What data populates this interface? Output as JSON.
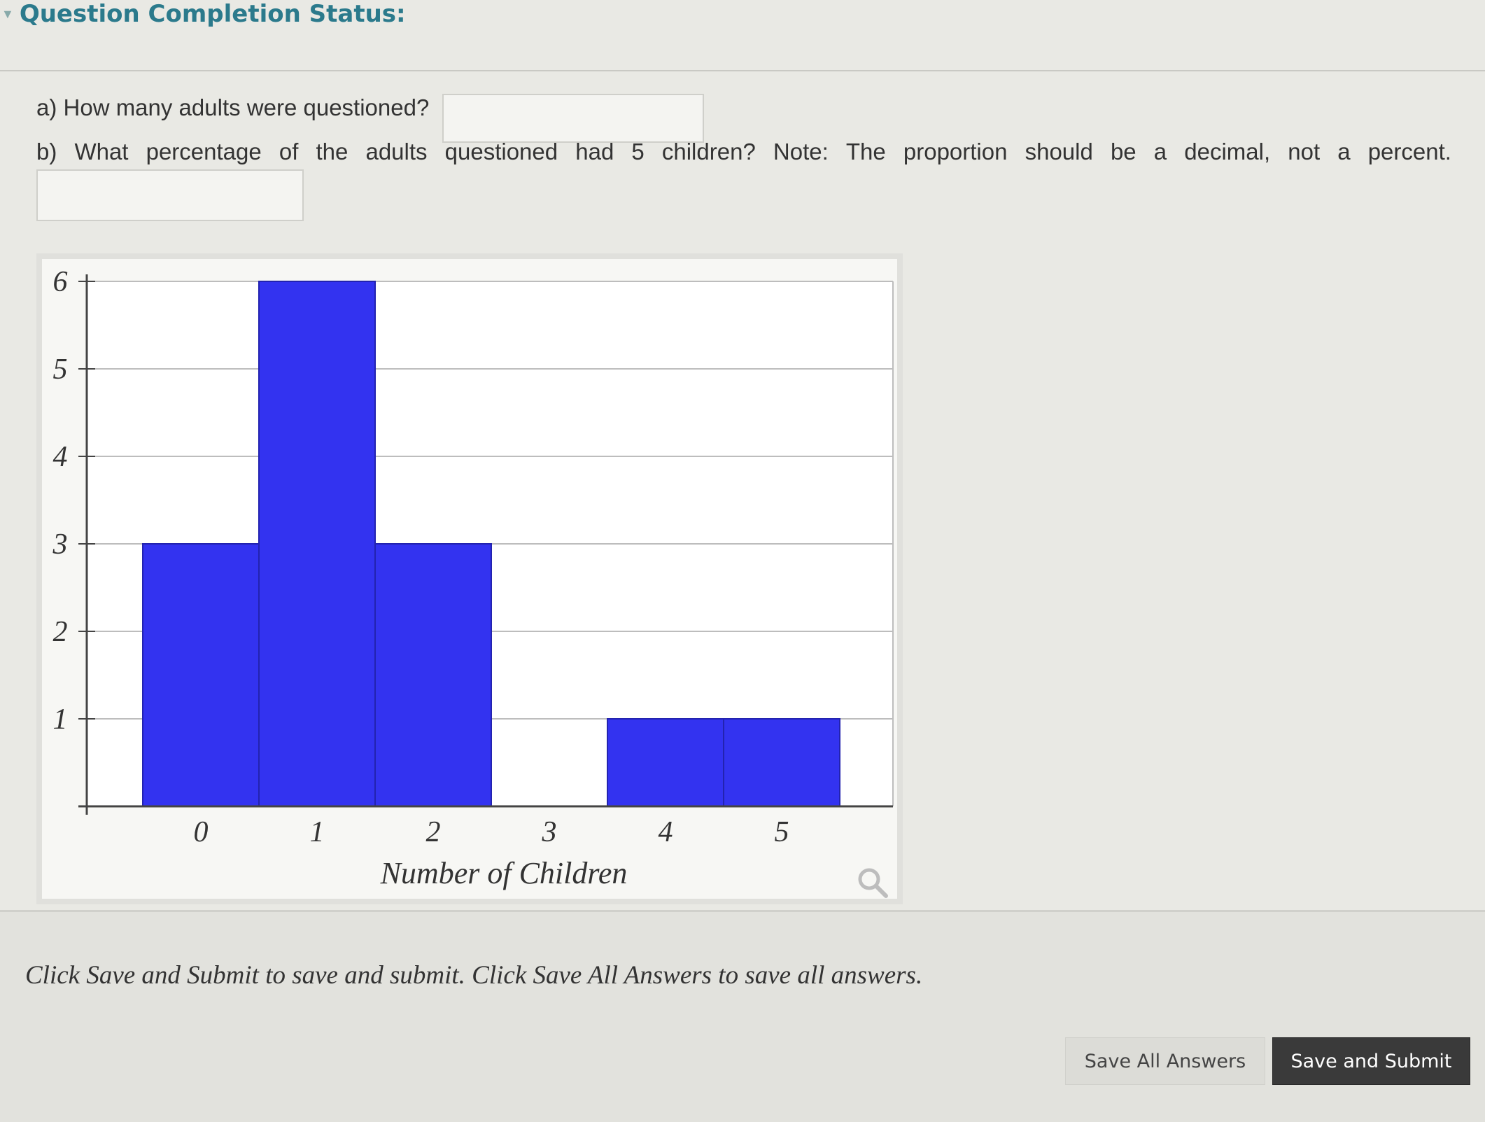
{
  "header": {
    "title": "Question Completion Status:",
    "chevron_icon": "chevron-down-icon"
  },
  "questions": {
    "a": {
      "text": "a) How many adults were questioned?",
      "answer_value": ""
    },
    "b": {
      "words": [
        "b)",
        "What",
        "percentage",
        "of",
        "the",
        "adults",
        "questioned",
        "had",
        "5",
        "children?",
        "Note:",
        "The",
        "proportion",
        "should",
        "be",
        "a",
        "decimal,",
        "not",
        "a",
        "percent."
      ],
      "answer_value": ""
    }
  },
  "chart_data": {
    "type": "bar",
    "categories": [
      "0",
      "1",
      "2",
      "3",
      "4",
      "5"
    ],
    "values": [
      3,
      6,
      3,
      0,
      1,
      1
    ],
    "xlabel": "Number of Children",
    "ylabel": "",
    "ylim": [
      0,
      6
    ],
    "yticks": [
      "1",
      "2",
      "3",
      "4",
      "5",
      "6"
    ],
    "grid": true,
    "bar_color": "#3333f0"
  },
  "zoom_icon": "magnifier-icon",
  "footer": {
    "instructions": "Click Save and Submit to save and submit. Click Save All Answers to save all answers.",
    "save_all_label": "Save All Answers",
    "save_submit_label": "Save and Submit"
  }
}
